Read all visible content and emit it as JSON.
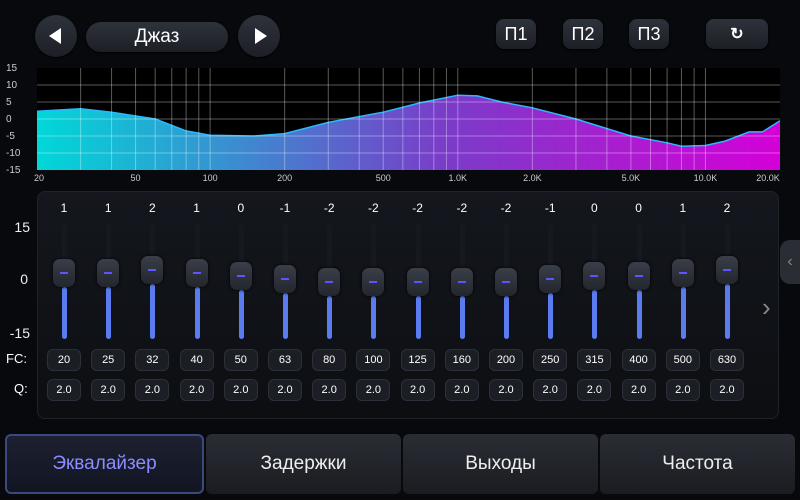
{
  "header": {
    "preset_name": "Джаз",
    "prev_icon": "triangle-left-icon",
    "next_icon": "triangle-right-icon",
    "presets": [
      "П1",
      "П2",
      "П3"
    ],
    "reset_icon": "reset-icon"
  },
  "graph": {
    "y_ticks": [
      "15",
      "10",
      "5",
      "0",
      "-5",
      "-10",
      "-15"
    ],
    "x_ticks": [
      "20",
      "50",
      "100",
      "200",
      "500",
      "1.0K",
      "2.0K",
      "5.0K",
      "10.0K",
      "20.0K"
    ],
    "response_curve": [
      [
        20,
        2.3
      ],
      [
        30,
        3
      ],
      [
        40,
        2
      ],
      [
        60,
        0
      ],
      [
        80,
        -3.5
      ],
      [
        100,
        -4.8
      ],
      [
        150,
        -5
      ],
      [
        200,
        -4.3
      ],
      [
        300,
        -1
      ],
      [
        500,
        2
      ],
      [
        700,
        4.7
      ],
      [
        1000,
        7
      ],
      [
        1200,
        6.8
      ],
      [
        1500,
        5
      ],
      [
        2000,
        3.3
      ],
      [
        3000,
        0
      ],
      [
        5000,
        -5
      ],
      [
        7000,
        -7
      ],
      [
        8000,
        -8
      ],
      [
        10000,
        -7.8
      ],
      [
        12000,
        -6.5
      ],
      [
        15000,
        -3.8
      ],
      [
        17000,
        -3.8
      ],
      [
        20000,
        -0.5
      ]
    ],
    "colors": {
      "low": "#00d8d8",
      "mid": "#7a3cc8",
      "high": "#d400d8",
      "line": "#2ab8ff"
    }
  },
  "eq": {
    "scale": [
      "15",
      "0",
      "-15"
    ],
    "fc_label": "FC:",
    "q_label": "Q:",
    "bands": [
      {
        "gain": "1",
        "fc": "20",
        "q": "2.0"
      },
      {
        "gain": "1",
        "fc": "25",
        "q": "2.0"
      },
      {
        "gain": "2",
        "fc": "32",
        "q": "2.0"
      },
      {
        "gain": "1",
        "fc": "40",
        "q": "2.0"
      },
      {
        "gain": "0",
        "fc": "50",
        "q": "2.0"
      },
      {
        "gain": "-1",
        "fc": "63",
        "q": "2.0"
      },
      {
        "gain": "-2",
        "fc": "80",
        "q": "2.0"
      },
      {
        "gain": "-2",
        "fc": "100",
        "q": "2.0"
      },
      {
        "gain": "-2",
        "fc": "125",
        "q": "2.0"
      },
      {
        "gain": "-2",
        "fc": "160",
        "q": "2.0"
      },
      {
        "gain": "-2",
        "fc": "200",
        "q": "2.0"
      },
      {
        "gain": "-1",
        "fc": "250",
        "q": "2.0"
      },
      {
        "gain": "0",
        "fc": "315",
        "q": "2.0"
      },
      {
        "gain": "0",
        "fc": "400",
        "q": "2.0"
      },
      {
        "gain": "1",
        "fc": "500",
        "q": "2.0"
      },
      {
        "gain": "2",
        "fc": "630",
        "q": "2.0"
      }
    ],
    "next_page_icon": "chevron-right-icon",
    "side_handle_icon": "chevron-left-icon"
  },
  "tabs": [
    {
      "label": "Эквалайзер",
      "active": true
    },
    {
      "label": "Задержки"
    },
    {
      "label": "Выходы"
    },
    {
      "label": "Частота"
    }
  ]
}
